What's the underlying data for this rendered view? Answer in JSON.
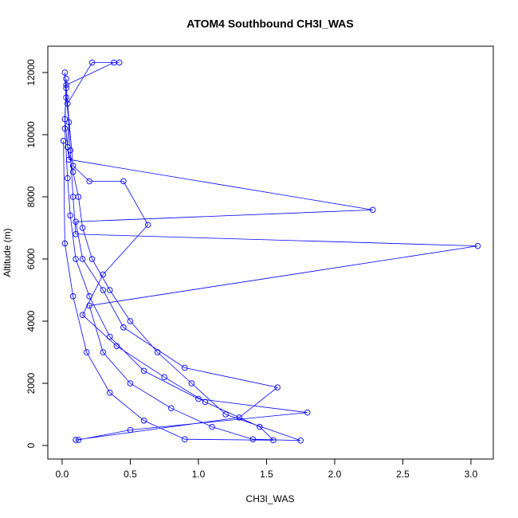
{
  "chart_data": {
    "type": "line",
    "title": "ATOM4 Southbound CH3I_WAS",
    "x_label": "CH3I_WAS",
    "y_label": "Altitude (m)",
    "markers": true,
    "xlim": [
      -0.105,
      3.164
    ],
    "ylim": [
      -436,
      12846
    ],
    "xticks": [
      {
        "value": 0,
        "label": "0.0"
      },
      0.5,
      {
        "value": 1,
        "label": "1.0"
      },
      1.5,
      {
        "value": 2,
        "label": "2.0"
      },
      2.5,
      {
        "value": 3,
        "label": "3.0"
      }
    ],
    "yticks": [
      0,
      2000,
      4000,
      6000,
      8000,
      10000,
      12000
    ],
    "series": [
      {
        "color": "#0000ff",
        "x": [
          0.02,
          0.03,
          0.05,
          0.04,
          0.08,
          0.12,
          0.15,
          0.22,
          0.35,
          0.5,
          0.7,
          0.95,
          1.2,
          1.75,
          1.4,
          1.1,
          0.8,
          0.5,
          0.3,
          0.2,
          3.05,
          0.1,
          0.08,
          0.06,
          0.04,
          0.22,
          0.42,
          0.38,
          0.03,
          0.02,
          0.05,
          2.28,
          0.1,
          0.15,
          0.3,
          0.45,
          0.9,
          1.58,
          1.3,
          0.1,
          0.12,
          0.5,
          1.8,
          1.0,
          0.6,
          0.35,
          0.2,
          0.1,
          0.06,
          0.04,
          0.02,
          0.03,
          0.03,
          0.08,
          0.2,
          0.45,
          0.63,
          0.3,
          0.15,
          0.4,
          0.75,
          1.05,
          1.45,
          1.55,
          0.9,
          0.6,
          0.35,
          0.18,
          0.08,
          0.02,
          0.01
        ],
        "values": [
          12000,
          11200,
          10400,
          9600,
          8800,
          8000,
          7000,
          6000,
          5000,
          4000,
          3000,
          2000,
          1000,
          160,
          200,
          600,
          1200,
          2000,
          3000,
          4500,
          6420,
          6800,
          8000,
          9500,
          11000,
          12320,
          12320,
          12320,
          11600,
          10500,
          9200,
          7580,
          7200,
          6000,
          5000,
          3800,
          2500,
          1870,
          900,
          180,
          180,
          500,
          1060,
          1500,
          2400,
          3500,
          4800,
          6000,
          7400,
          8600,
          10200,
          11800,
          11500,
          9000,
          8500,
          8500,
          7100,
          5500,
          4200,
          3200,
          2200,
          1400,
          600,
          170,
          200,
          800,
          1700,
          3000,
          4800,
          6500,
          9800
        ]
      }
    ]
  }
}
